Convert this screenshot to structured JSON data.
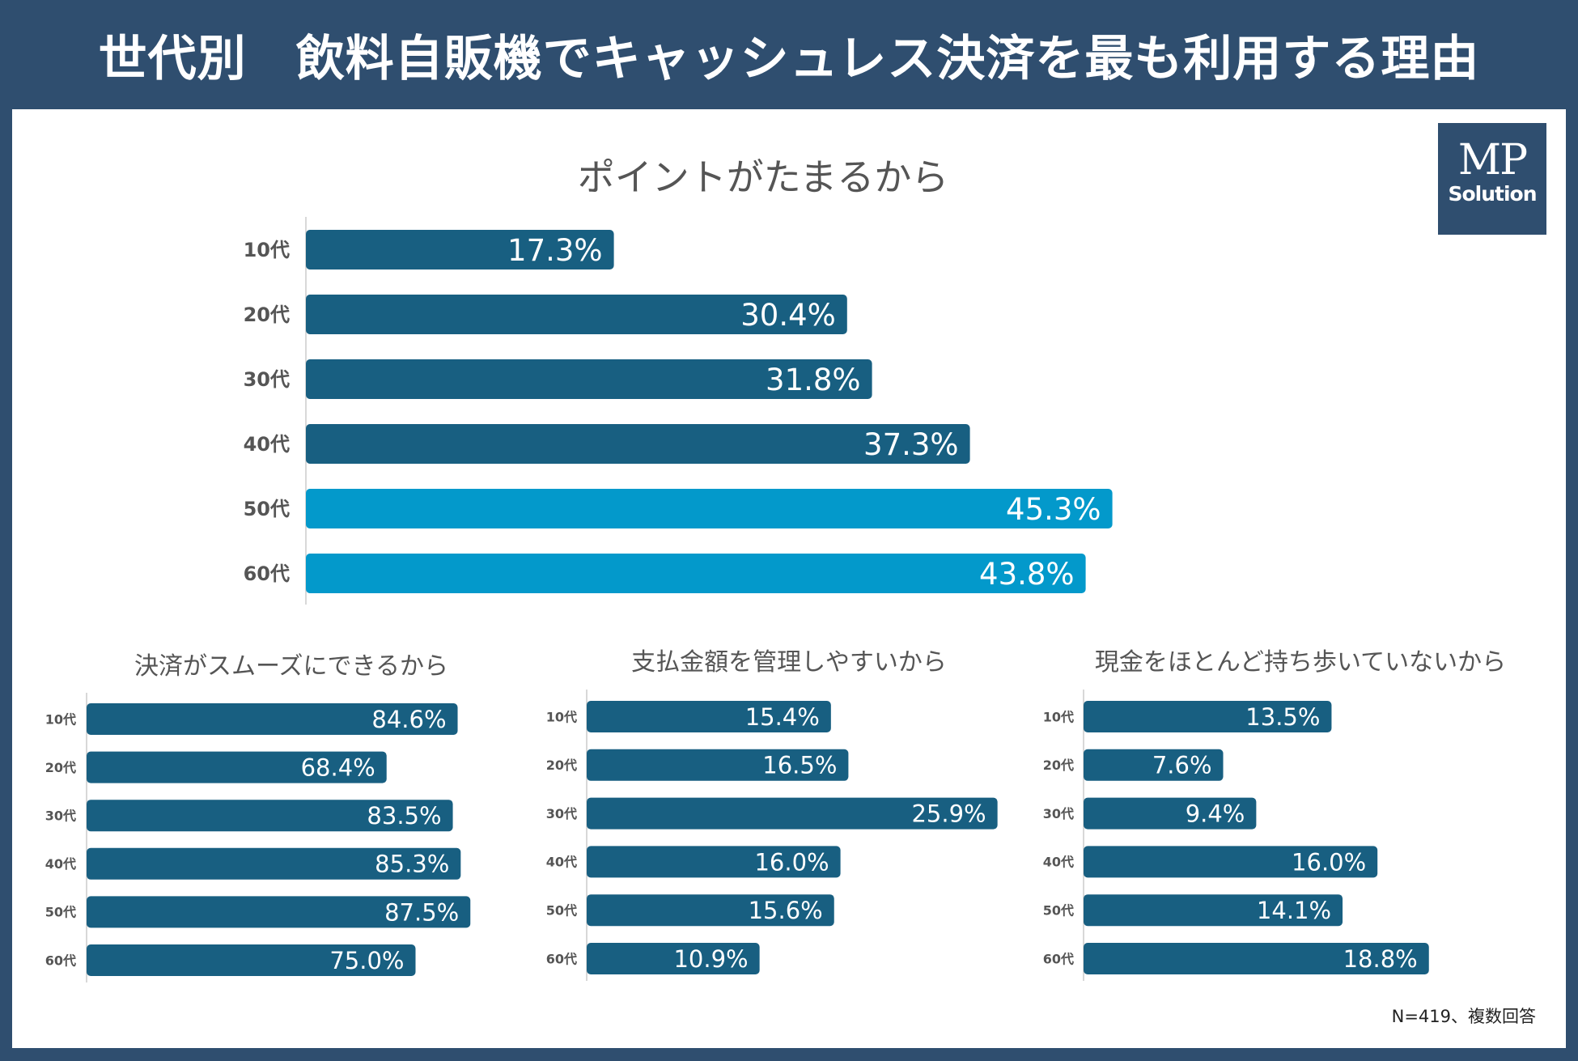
{
  "title": "世代別　飲料自販機でキャッシュレス決済を最も利用する理由",
  "logo": {
    "line1": "MP",
    "line2": "Solution"
  },
  "footnote": "N=419、複数回答",
  "colors": {
    "frame": "#2f4e6f",
    "bar": "#185f81",
    "bar_highlight": "#0399cb",
    "text": "#555555"
  },
  "chart_data": [
    {
      "type": "bar",
      "orientation": "horizontal",
      "title": "ポイントがたまるから",
      "categories": [
        "10代",
        "20代",
        "30代",
        "40代",
        "50代",
        "60代"
      ],
      "values": [
        17.3,
        30.4,
        31.8,
        37.3,
        45.3,
        43.8
      ],
      "highlight": [
        false,
        false,
        false,
        false,
        true,
        true
      ],
      "value_unit": "%",
      "xlim": [
        0,
        50
      ]
    },
    {
      "type": "bar",
      "orientation": "horizontal",
      "title": "決済がスムーズにできるから",
      "categories": [
        "10代",
        "20代",
        "30代",
        "40代",
        "50代",
        "60代"
      ],
      "values": [
        84.6,
        68.4,
        83.5,
        85.3,
        87.5,
        75.0
      ],
      "value_unit": "%",
      "xlim": [
        0,
        100
      ]
    },
    {
      "type": "bar",
      "orientation": "horizontal",
      "title": "支払金額を管理しやすいから",
      "categories": [
        "10代",
        "20代",
        "30代",
        "40代",
        "50代",
        "60代"
      ],
      "values": [
        15.4,
        16.5,
        25.9,
        16.0,
        15.6,
        10.9
      ],
      "value_unit": "%",
      "xlim": [
        0,
        30
      ]
    },
    {
      "type": "bar",
      "orientation": "horizontal",
      "title": "現金をほとんど持ち歩いていないから",
      "categories": [
        "10代",
        "20代",
        "30代",
        "40代",
        "50代",
        "60代"
      ],
      "values": [
        13.5,
        7.6,
        9.4,
        16.0,
        14.1,
        18.8
      ],
      "value_unit": "%",
      "xlim": [
        0,
        20
      ]
    }
  ]
}
